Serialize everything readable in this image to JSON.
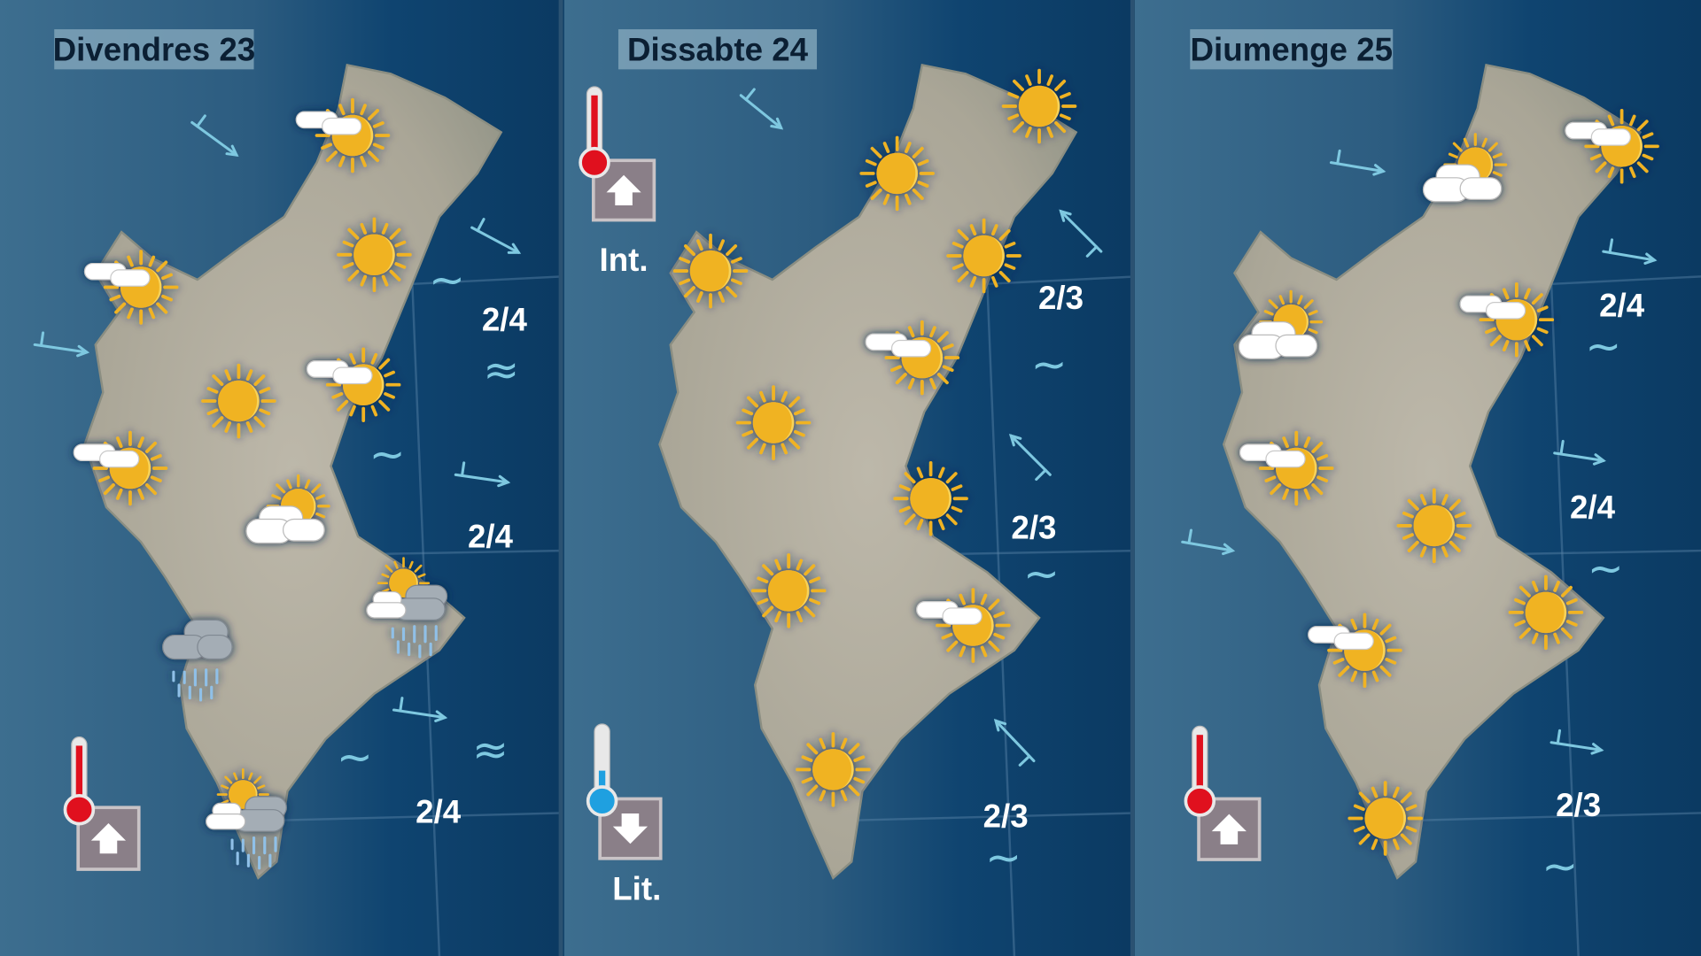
{
  "colors": {
    "sea": "#0d3e66",
    "inland": "#3b6b8c",
    "land": "#b3ae9f",
    "title_bg": "#7fa3b8",
    "sun": "#f0b323",
    "arrow": "#7ec8e0",
    "thermo_warm": "#e0101e",
    "thermo_cold": "#1fa0e0"
  },
  "days": [
    {
      "title": "Divendres 23",
      "icons": [
        "sun-cloud",
        "sun",
        "sun-cloud",
        "sun",
        "sun-cloud",
        "sun-cloud",
        "cloud-sun",
        "rain-sun",
        "rain",
        "rain-sun"
      ],
      "sea_states": [
        "2/4",
        "2/4",
        "2/4"
      ],
      "waves": [
        "~",
        "≈",
        "~",
        "~",
        "≈"
      ],
      "wind_count": 5,
      "temperature": [
        {
          "trend": "up",
          "color": "warm",
          "label": ""
        }
      ]
    },
    {
      "title": "Dissabte 24",
      "icons": [
        "sun",
        "sun",
        "sun",
        "sun",
        "sun-cloud",
        "sun",
        "sun",
        "sun",
        "sun-cloud",
        "sun"
      ],
      "sea_states": [
        "2/3",
        "2/3",
        "2/3"
      ],
      "waves": [
        "~",
        "~",
        "~"
      ],
      "wind_count": 4,
      "temperature": [
        {
          "trend": "up",
          "color": "warm",
          "label": "Int."
        },
        {
          "trend": "down",
          "color": "cold",
          "label": "Lit."
        }
      ]
    },
    {
      "title": "Diumenge 25",
      "icons": [
        "sun-cloud",
        "cloud-sun",
        "cloud-sun",
        "sun-cloud",
        "sun-cloud",
        "sun",
        "sun",
        "sun-cloud",
        "sun"
      ],
      "sea_states": [
        "2/4",
        "2/4",
        "2/3"
      ],
      "waves": [
        "~",
        "~",
        "~"
      ],
      "wind_count": 5,
      "temperature": [
        {
          "trend": "up",
          "color": "warm",
          "label": ""
        }
      ]
    }
  ]
}
